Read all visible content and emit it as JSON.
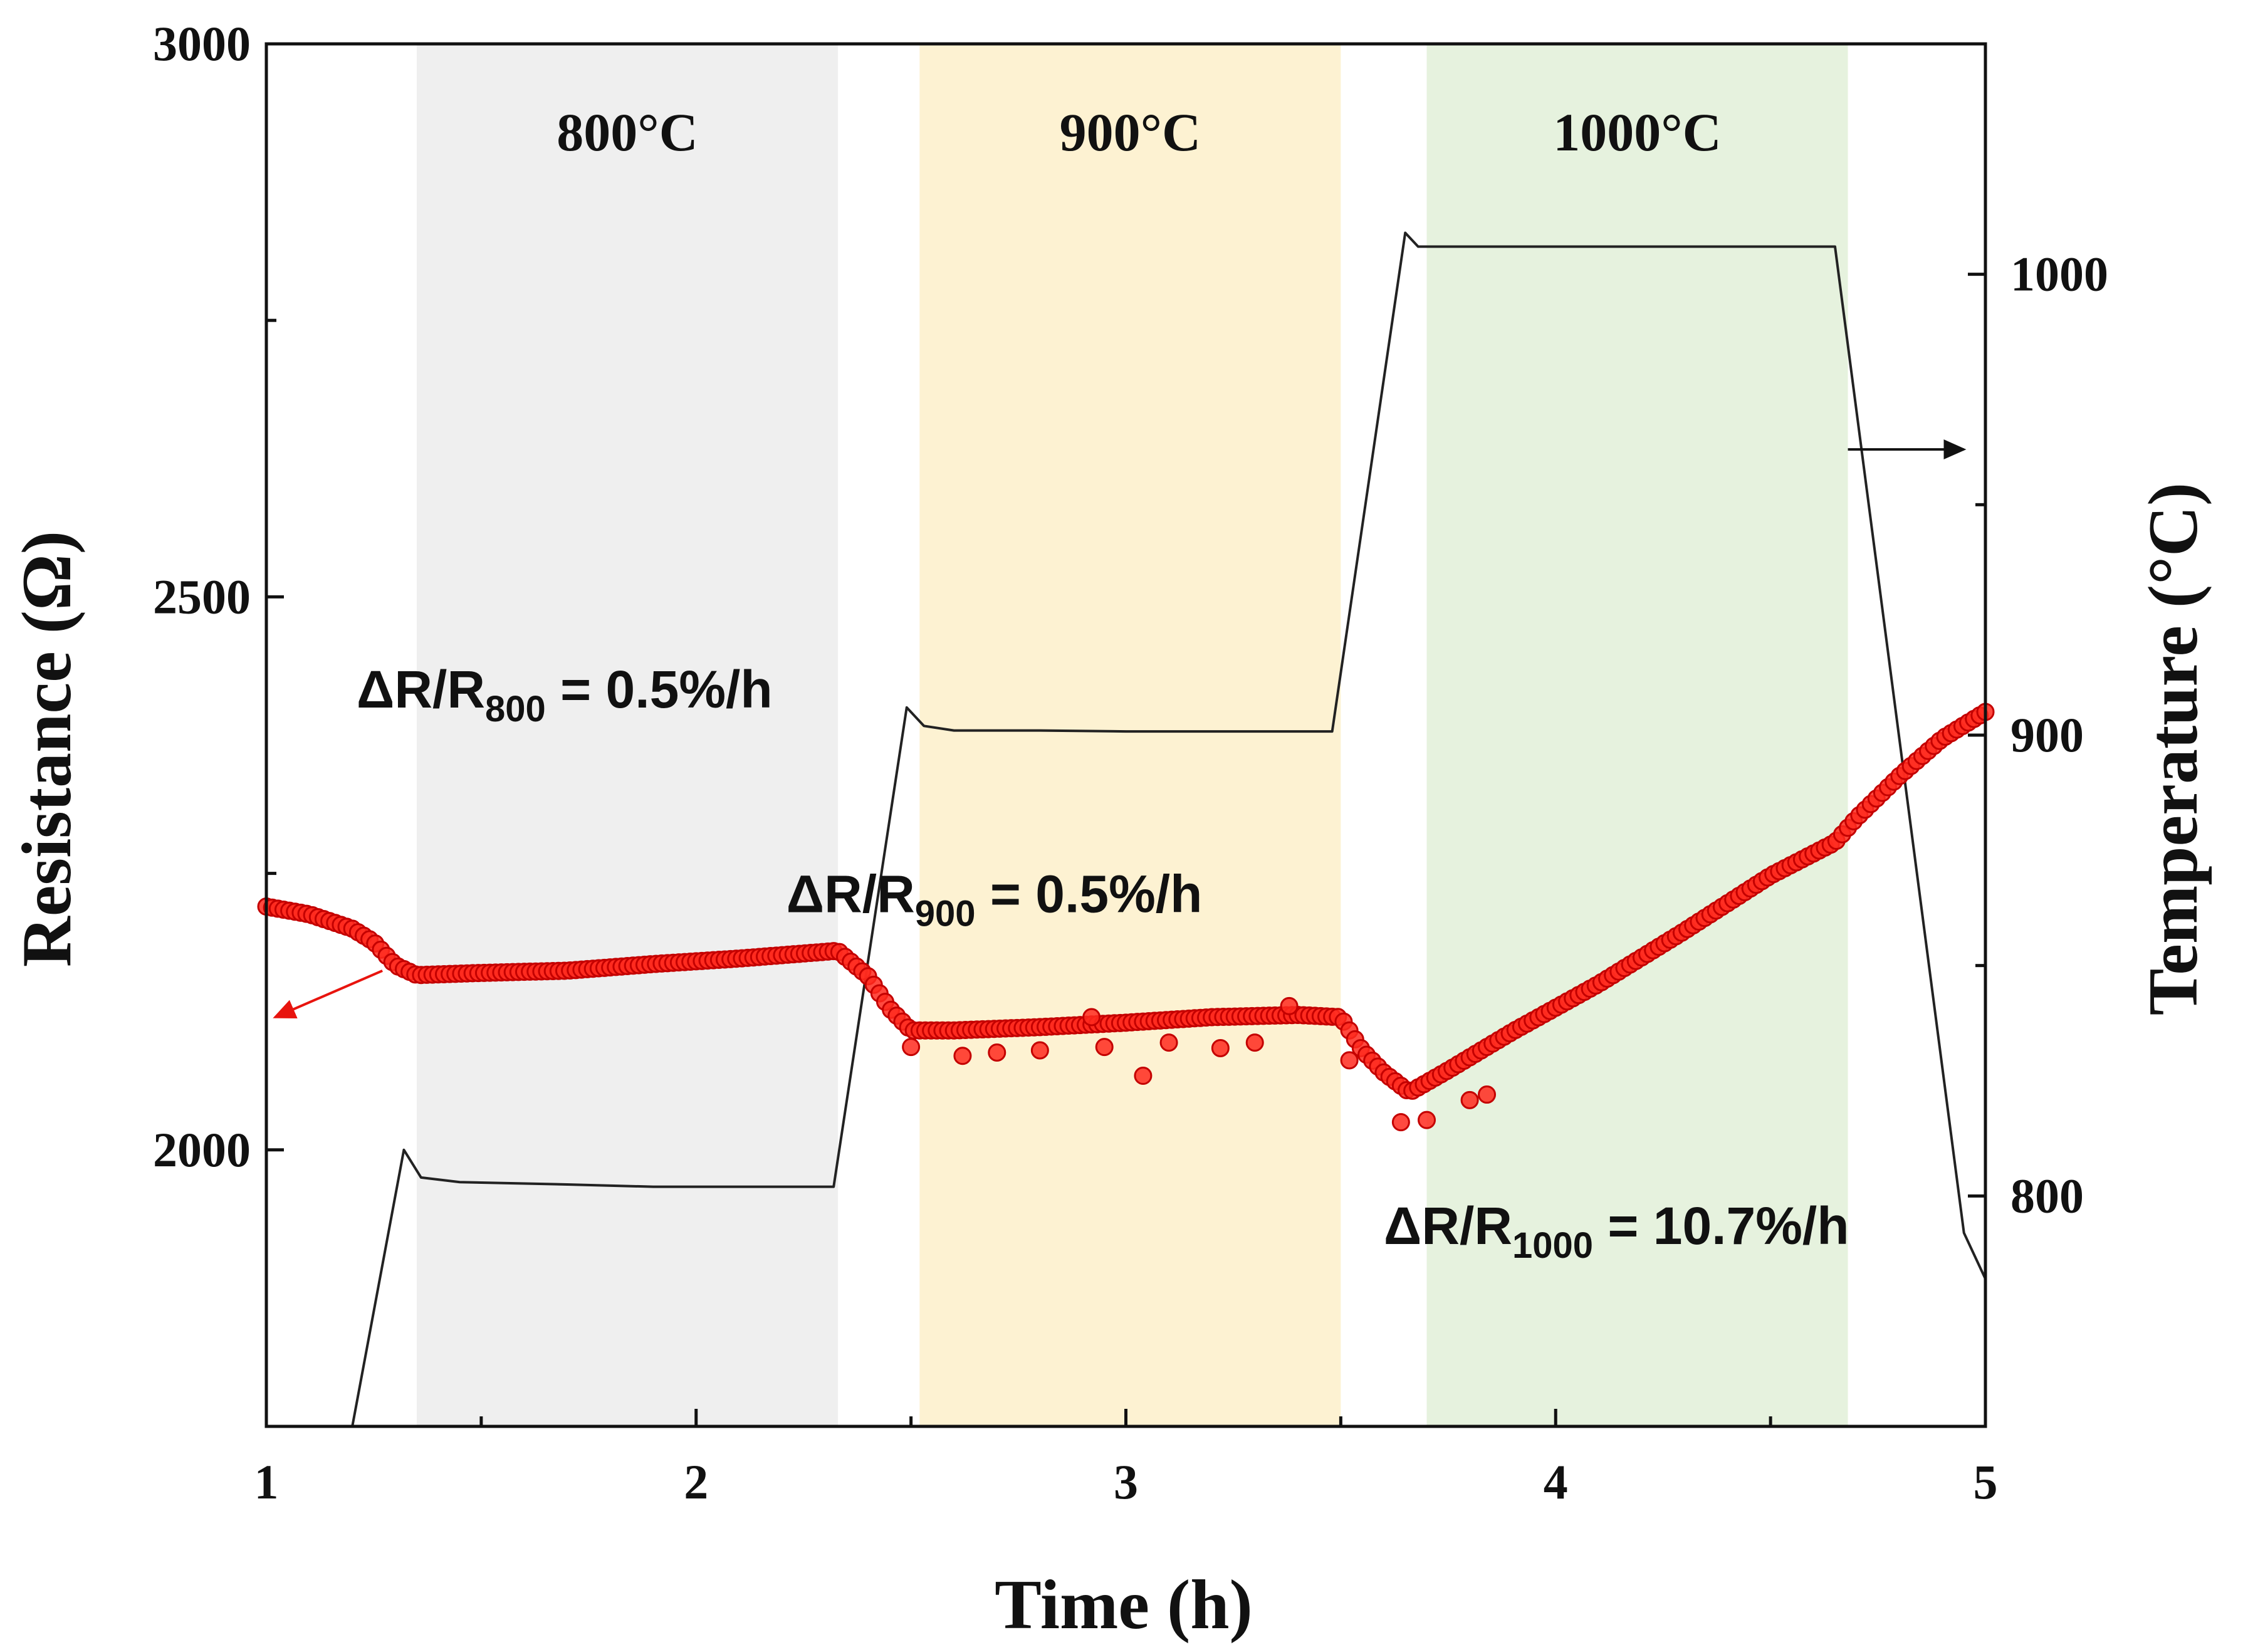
{
  "chart_data": {
    "type": "line",
    "xlabel": "Time (h)",
    "ylabel": "Resistance (Ω)",
    "y2label": "Temperature (°C)",
    "xlim": [
      1,
      5
    ],
    "ylim": [
      1750,
      3000
    ],
    "y2lim": [
      750,
      1050
    ],
    "xticks": [
      1,
      2,
      3,
      4,
      5
    ],
    "xtick_labels": [
      "1",
      "2",
      "3",
      "4",
      "5"
    ],
    "yticks": [
      2000,
      2500,
      3000
    ],
    "ytick_labels": [
      "2000",
      "2500",
      "3000"
    ],
    "y2ticks": [
      800,
      900,
      1000
    ],
    "y2tick_labels": [
      "800",
      "900",
      "1000"
    ],
    "grid": false,
    "colors": {
      "resistance": "#e8140e",
      "temperature": "#222222",
      "band_800": "#efefef",
      "band_900": "#fdf2d2",
      "band_1000": "#e6f2de",
      "axis": "#111111"
    },
    "bands": [
      {
        "label": "800°C",
        "x_start": 1.35,
        "x_end": 2.33
      },
      {
        "label": "900°C",
        "x_start": 2.52,
        "x_end": 3.5
      },
      {
        "label": "1000°C",
        "x_start": 3.7,
        "x_end": 4.68
      }
    ],
    "annotations": [
      {
        "main": "ΔR/R",
        "sub": "800",
        "rest": " = 0.5%/h",
        "x": 1.21,
        "y": 2400
      },
      {
        "main": "ΔR/R",
        "sub": "900",
        "rest": " = 0.5%/h",
        "x": 2.21,
        "y": 2215
      },
      {
        "main": "ΔR/R",
        "sub": "1000",
        "rest": " = 10.7%/h",
        "x": 3.6,
        "y": 1915
      }
    ],
    "series": [
      {
        "name": "Resistance",
        "axis": "left",
        "style": "markers",
        "x": [
          1.0,
          1.1,
          1.2,
          1.25,
          1.3,
          1.35,
          1.5,
          1.7,
          1.9,
          2.1,
          2.33,
          2.4,
          2.45,
          2.5,
          2.6,
          2.8,
          3.0,
          3.2,
          3.4,
          3.5,
          3.55,
          3.6,
          3.66,
          3.75,
          3.9,
          4.1,
          4.3,
          4.5,
          4.65,
          4.7,
          4.8,
          4.9,
          5.0
        ],
        "values": [
          2220,
          2213,
          2200,
          2188,
          2167,
          2158,
          2160,
          2162,
          2168,
          2173,
          2180,
          2157,
          2128,
          2108,
          2108,
          2111,
          2115,
          2120,
          2122,
          2120,
          2090,
          2070,
          2052,
          2072,
          2107,
          2150,
          2198,
          2248,
          2278,
          2300,
          2338,
          2372,
          2396
        ]
      },
      {
        "name": "Temperature",
        "axis": "right",
        "style": "line",
        "x": [
          1.2,
          1.32,
          1.36,
          1.45,
          1.7,
          1.9,
          2.1,
          2.32,
          2.49,
          2.53,
          2.6,
          2.8,
          3.0,
          3.2,
          3.48,
          3.65,
          3.68,
          3.8,
          4.0,
          4.3,
          4.65,
          4.95,
          5.0
        ],
        "values": [
          750,
          810,
          804,
          803,
          802.5,
          802,
          802,
          802,
          906,
          902,
          901,
          901,
          900.8,
          900.8,
          900.8,
          1009,
          1006,
          1006,
          1006,
          1006,
          1006,
          792,
          782
        ]
      }
    ],
    "outliers": {
      "x": [
        2.5,
        2.62,
        2.7,
        2.8,
        2.92,
        2.95,
        3.04,
        3.1,
        3.22,
        3.3,
        3.38,
        3.52,
        3.64,
        3.7,
        3.8,
        3.84
      ],
      "values": [
        2093,
        2085,
        2088,
        2090,
        2120,
        2093,
        2067,
        2097,
        2092,
        2097,
        2130,
        2081,
        2025,
        2027,
        2045,
        2050
      ]
    },
    "arrows": [
      {
        "x_from": 1.27,
        "y_from": 2162,
        "x_to": 1.0,
        "y_to": 2120,
        "color": "red"
      },
      {
        "x_from": 4.68,
        "y_from": 962,
        "x_to": 4.97,
        "y_to": 962,
        "color": "black"
      }
    ]
  }
}
